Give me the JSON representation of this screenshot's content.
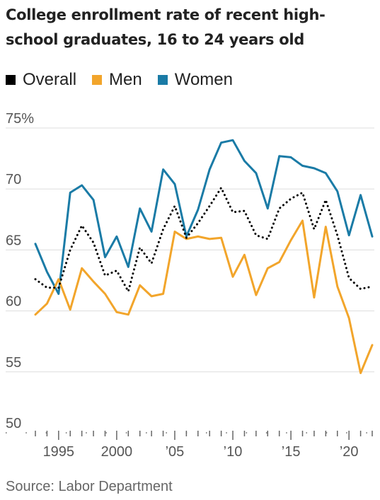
{
  "chart_data": {
    "type": "line",
    "title": "College enrollment rate of recent high-school graduates, 16 to 24 years old",
    "source": "Source: Labor Department",
    "ylim": [
      50,
      75
    ],
    "y_ticks": [
      50,
      55,
      60,
      65,
      70,
      75
    ],
    "y_tick_labels": [
      "50",
      "55",
      "60",
      "65",
      "70",
      "75%"
    ],
    "xlim": [
      1993,
      2022
    ],
    "x_ticks": [
      1995,
      2000,
      2005,
      2010,
      2015,
      2020
    ],
    "x_tick_labels": [
      "1995",
      "2000",
      "’05",
      "’10",
      "’15",
      "’20"
    ],
    "x": [
      1993,
      1994,
      1995,
      1996,
      1997,
      1998,
      1999,
      2000,
      2001,
      2002,
      2003,
      2004,
      2005,
      2006,
      2007,
      2008,
      2009,
      2010,
      2011,
      2012,
      2013,
      2014,
      2015,
      2016,
      2017,
      2018,
      2019,
      2020,
      2021,
      2022
    ],
    "series": [
      {
        "name": "Overall",
        "color": "#000000",
        "style": "dotted",
        "values": [
          62.6,
          61.9,
          61.9,
          65.0,
          67.0,
          65.6,
          62.9,
          63.3,
          61.6,
          65.2,
          63.9,
          66.7,
          68.6,
          66.0,
          67.2,
          68.6,
          70.1,
          68.1,
          68.2,
          66.2,
          65.9,
          68.4,
          69.2,
          69.7,
          66.7,
          69.1,
          66.2,
          62.7,
          61.8,
          62.0
        ]
      },
      {
        "name": "Men",
        "color": "#f2a52b",
        "style": "solid",
        "values": [
          59.7,
          60.6,
          62.6,
          60.1,
          63.5,
          62.4,
          61.4,
          59.9,
          59.7,
          62.1,
          61.2,
          61.4,
          66.5,
          65.9,
          66.1,
          65.9,
          66.0,
          62.8,
          64.6,
          61.3,
          63.5,
          64.0,
          65.8,
          67.4,
          61.1,
          66.9,
          62.0,
          59.4,
          54.9,
          57.2
        ]
      },
      {
        "name": "Women",
        "color": "#1a7ba6",
        "style": "solid",
        "values": [
          65.5,
          63.2,
          61.4,
          69.7,
          70.3,
          69.1,
          64.4,
          66.1,
          63.6,
          68.4,
          66.5,
          71.6,
          70.4,
          66.1,
          68.3,
          71.6,
          73.8,
          74.0,
          72.3,
          71.3,
          68.4,
          72.7,
          72.6,
          71.9,
          71.7,
          71.3,
          69.8,
          66.2,
          69.5,
          66.1
        ]
      }
    ]
  }
}
